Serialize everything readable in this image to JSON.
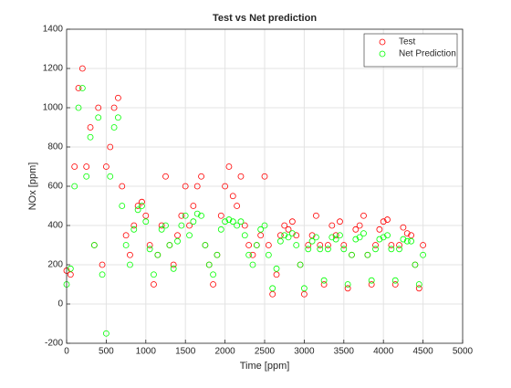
{
  "chart_data": {
    "type": "scatter",
    "title": "Test vs Net prediction",
    "xlabel": "Time [ppm]",
    "ylabel": "NOx [ppm]",
    "x": [
      0,
      50,
      100,
      150,
      200,
      250,
      300,
      350,
      400,
      450,
      500,
      550,
      600,
      650,
      700,
      750,
      800,
      850,
      900,
      950,
      1000,
      1050,
      1100,
      1150,
      1200,
      1250,
      1300,
      1350,
      1400,
      1450,
      1500,
      1550,
      1600,
      1650,
      1700,
      1750,
      1800,
      1850,
      1900,
      1950,
      2000,
      2050,
      2100,
      2150,
      2200,
      2250,
      2300,
      2350,
      2400,
      2450,
      2500,
      2550,
      2600,
      2650,
      2700,
      2750,
      2800,
      2850,
      2900,
      2950,
      3000,
      3050,
      3100,
      3150,
      3200,
      3250,
      3300,
      3350,
      3400,
      3450,
      3500,
      3550,
      3600,
      3650,
      3700,
      3750,
      3800,
      3850,
      3900,
      3950,
      4000,
      4050,
      4100,
      4150,
      4200,
      4250,
      4300,
      4350,
      4400,
      4450,
      4500
    ],
    "series": [
      {
        "name": "Test",
        "color": "#ff0000",
        "values": [
          170,
          150,
          700,
          1100,
          1200,
          700,
          900,
          300,
          1000,
          200,
          700,
          800,
          1000,
          1050,
          600,
          350,
          250,
          400,
          500,
          520,
          450,
          300,
          100,
          250,
          400,
          650,
          300,
          200,
          350,
          450,
          600,
          400,
          500,
          600,
          650,
          300,
          200,
          100,
          250,
          450,
          600,
          700,
          550,
          500,
          650,
          400,
          300,
          250,
          300,
          350,
          650,
          300,
          50,
          150,
          350,
          400,
          380,
          420,
          350,
          200,
          50,
          300,
          350,
          450,
          300,
          100,
          300,
          400,
          350,
          420,
          300,
          80,
          250,
          380,
          400,
          450,
          250,
          100,
          300,
          380,
          420,
          430,
          300,
          100,
          300,
          390,
          360,
          350,
          200,
          80,
          300
        ]
      },
      {
        "name": "Net Prediction",
        "color": "#00ff00",
        "values": [
          100,
          180,
          600,
          1000,
          1100,
          650,
          850,
          300,
          950,
          150,
          -150,
          650,
          900,
          950,
          500,
          300,
          200,
          380,
          480,
          500,
          420,
          280,
          150,
          250,
          380,
          400,
          300,
          180,
          320,
          400,
          450,
          350,
          420,
          460,
          450,
          300,
          200,
          150,
          250,
          380,
          420,
          430,
          420,
          400,
          420,
          350,
          250,
          200,
          300,
          380,
          400,
          250,
          80,
          180,
          320,
          350,
          340,
          360,
          300,
          200,
          80,
          280,
          320,
          340,
          280,
          120,
          280,
          340,
          330,
          350,
          280,
          100,
          250,
          330,
          340,
          360,
          250,
          120,
          280,
          330,
          340,
          350,
          280,
          120,
          280,
          330,
          320,
          320,
          200,
          100,
          250
        ]
      }
    ],
    "xlim": [
      0,
      5000
    ],
    "xticks": [
      0,
      500,
      1000,
      1500,
      2000,
      2500,
      3000,
      3500,
      4000,
      4500,
      5000
    ],
    "ylim": [
      -200,
      1400
    ],
    "yticks": [
      -200,
      0,
      200,
      400,
      600,
      800,
      1000,
      1200,
      1400
    ],
    "grid": true,
    "legend": "northeast"
  }
}
